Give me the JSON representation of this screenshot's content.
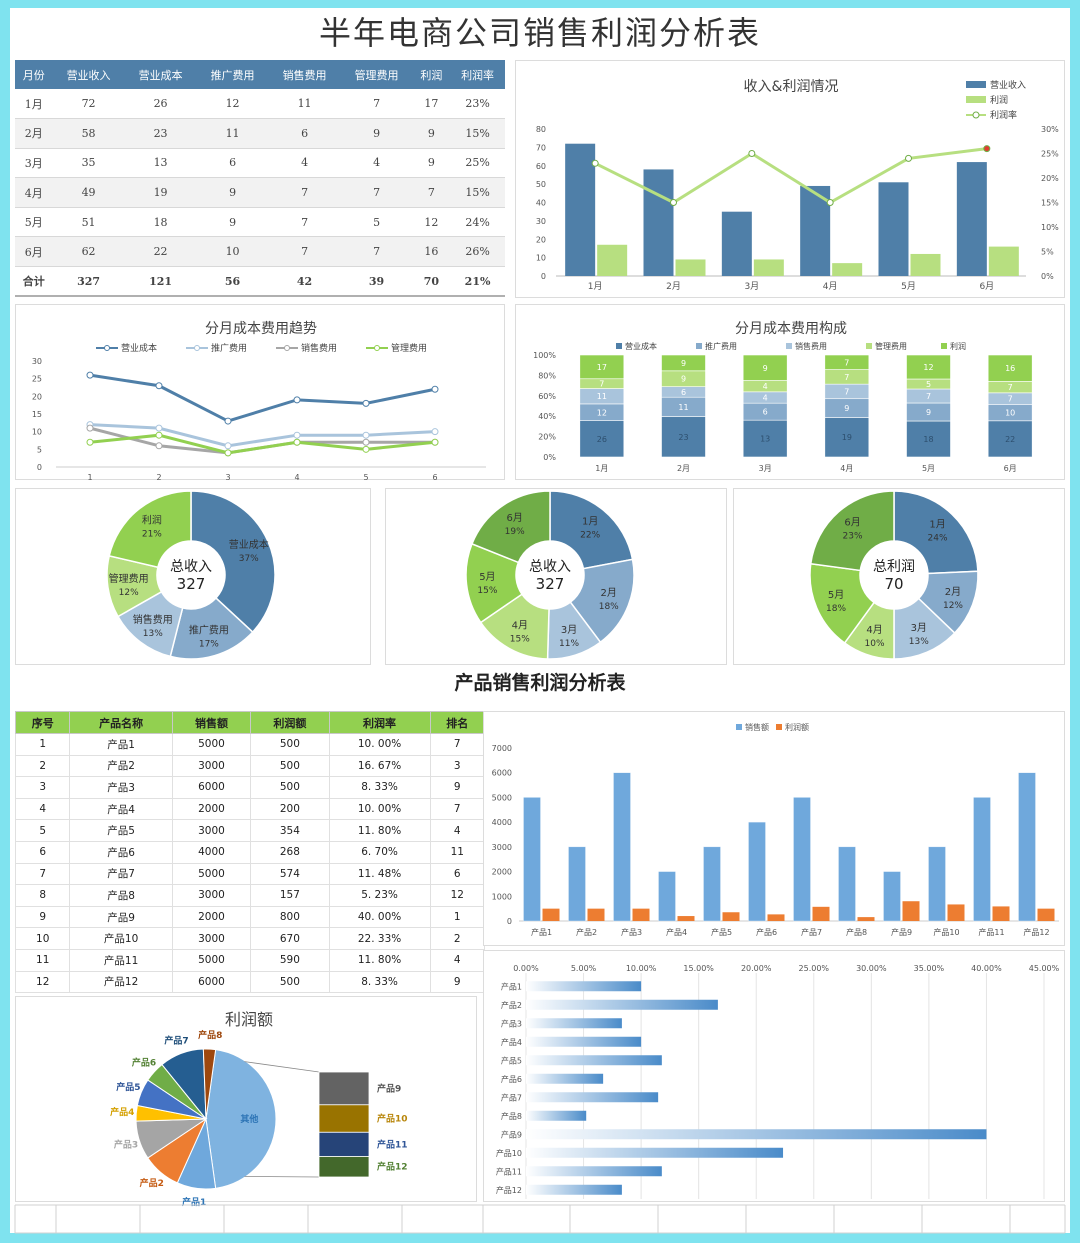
{
  "title": "半年电商公司销售利润分析表",
  "monthly_table": {
    "headers": [
      "月份",
      "营业收入",
      "营业成本",
      "推广费用",
      "销售费用",
      "管理费用",
      "利润",
      "利润率"
    ],
    "rows": [
      [
        "1月",
        "72",
        "26",
        "12",
        "11",
        "7",
        "17",
        "23%"
      ],
      [
        "2月",
        "58",
        "23",
        "11",
        "6",
        "9",
        "9",
        "15%"
      ],
      [
        "3月",
        "35",
        "13",
        "6",
        "4",
        "4",
        "9",
        "25%"
      ],
      [
        "4月",
        "49",
        "19",
        "9",
        "7",
        "7",
        "7",
        "15%"
      ],
      [
        "5月",
        "51",
        "18",
        "9",
        "7",
        "5",
        "12",
        "24%"
      ],
      [
        "6月",
        "62",
        "22",
        "10",
        "7",
        "7",
        "16",
        "26%"
      ]
    ],
    "total": [
      "合计",
      "327",
      "121",
      "56",
      "42",
      "39",
      "70",
      "21%"
    ]
  },
  "colors": {
    "blue": "#4f7fa8",
    "light_blue": "#a9c4dc",
    "gray": "#a6a6a6",
    "green": "#92d050",
    "lime": "#b7df80",
    "dark_green": "#70ad47",
    "orange": "#ed7d31",
    "bar_blue": "#6fa8dc",
    "yellow": "#ffc000"
  },
  "product_title": "产品销售利润分析表",
  "product_table": {
    "headers": [
      "序号",
      "产品名称",
      "销售额",
      "利润额",
      "利润率",
      "排名"
    ],
    "rows": [
      [
        "1",
        "产品1",
        "5000",
        "500",
        "10. 00%",
        "7"
      ],
      [
        "2",
        "产品2",
        "3000",
        "500",
        "16. 67%",
        "3"
      ],
      [
        "3",
        "产品3",
        "6000",
        "500",
        "8. 33%",
        "9"
      ],
      [
        "4",
        "产品4",
        "2000",
        "200",
        "10. 00%",
        "7"
      ],
      [
        "5",
        "产品5",
        "3000",
        "354",
        "11. 80%",
        "4"
      ],
      [
        "6",
        "产品6",
        "4000",
        "268",
        "6. 70%",
        "11"
      ],
      [
        "7",
        "产品7",
        "5000",
        "574",
        "11. 48%",
        "6"
      ],
      [
        "8",
        "产品8",
        "3000",
        "157",
        "5. 23%",
        "12"
      ],
      [
        "9",
        "产品9",
        "2000",
        "800",
        "40. 00%",
        "1"
      ],
      [
        "10",
        "产品10",
        "3000",
        "670",
        "22. 33%",
        "2"
      ],
      [
        "11",
        "产品11",
        "5000",
        "590",
        "11. 80%",
        "4"
      ],
      [
        "12",
        "产品12",
        "6000",
        "500",
        "8. 33%",
        "9"
      ]
    ]
  },
  "chart_data": [
    {
      "id": "income_profit",
      "type": "bar",
      "title": "收入&利润情况",
      "categories": [
        "1月",
        "2月",
        "3月",
        "4月",
        "5月",
        "6月"
      ],
      "series": [
        {
          "name": "营业收入",
          "values": [
            72,
            58,
            35,
            49,
            51,
            62
          ],
          "axis": "left"
        },
        {
          "name": "利润",
          "values": [
            17,
            9,
            9,
            7,
            12,
            16
          ],
          "axis": "left"
        },
        {
          "name": "利润率",
          "values": [
            23,
            15,
            25,
            15,
            24,
            26
          ],
          "axis": "right",
          "kind": "line"
        }
      ],
      "left_ticks": [
        "0",
        "10",
        "20",
        "30",
        "40",
        "50",
        "60",
        "70",
        "80"
      ],
      "right_ticks": [
        "0%",
        "5%",
        "10%",
        "15%",
        "20%",
        "25%",
        "30%"
      ],
      "ylim": [
        0,
        80
      ],
      "y2lim": [
        0,
        30
      ]
    },
    {
      "id": "cost_trend",
      "type": "line",
      "title": "分月成本费用趋势",
      "x": [
        "1",
        "2",
        "3",
        "4",
        "5",
        "6"
      ],
      "series": [
        {
          "name": "营业成本",
          "values": [
            26,
            23,
            13,
            19,
            18,
            22
          ]
        },
        {
          "name": "推广费用",
          "values": [
            12,
            11,
            6,
            9,
            9,
            10
          ]
        },
        {
          "name": "销售费用",
          "values": [
            11,
            6,
            4,
            7,
            7,
            7
          ]
        },
        {
          "name": "管理费用",
          "values": [
            7,
            9,
            4,
            7,
            5,
            7
          ]
        }
      ],
      "y_ticks": [
        "0",
        "5",
        "10",
        "15",
        "20",
        "25",
        "30"
      ],
      "ylim": [
        0,
        30
      ]
    },
    {
      "id": "cost_composition",
      "type": "bar",
      "stacked": "percent",
      "title": "分月成本费用构成",
      "categories": [
        "1月",
        "2月",
        "3月",
        "4月",
        "5月",
        "6月"
      ],
      "series": [
        {
          "name": "营业成本",
          "values": [
            26,
            23,
            13,
            19,
            18,
            22
          ]
        },
        {
          "name": "推广费用",
          "values": [
            12,
            11,
            6,
            9,
            9,
            10
          ]
        },
        {
          "name": "销售费用",
          "values": [
            11,
            6,
            4,
            7,
            7,
            7
          ]
        },
        {
          "name": "管理费用",
          "values": [
            7,
            9,
            4,
            7,
            5,
            7
          ]
        },
        {
          "name": "利润",
          "values": [
            17,
            9,
            9,
            7,
            12,
            16
          ]
        }
      ],
      "y_ticks": [
        "0%",
        "20%",
        "40%",
        "60%",
        "80%",
        "100%"
      ]
    },
    {
      "id": "donut_breakdown",
      "type": "pie",
      "center_label": "总收入",
      "center_value": "327",
      "slices": [
        {
          "name": "营业成本",
          "value": 121,
          "pct": "37%"
        },
        {
          "name": "推广费用",
          "value": 56,
          "pct": "17%"
        },
        {
          "name": "销售费用",
          "value": 42,
          "pct": "13%"
        },
        {
          "name": "管理费用",
          "value": 39,
          "pct": "12%"
        },
        {
          "name": "利润",
          "value": 70,
          "pct": "21%"
        }
      ]
    },
    {
      "id": "donut_income",
      "type": "pie",
      "center_label": "总收入",
      "center_value": "327",
      "slices": [
        {
          "name": "1月",
          "value": 72,
          "pct": "22%"
        },
        {
          "name": "2月",
          "value": 58,
          "pct": "18%"
        },
        {
          "name": "3月",
          "value": 35,
          "pct": "11%"
        },
        {
          "name": "4月",
          "value": 49,
          "pct": "15%"
        },
        {
          "name": "5月",
          "value": 51,
          "pct": "15%"
        },
        {
          "name": "6月",
          "value": 62,
          "pct": "19%"
        }
      ]
    },
    {
      "id": "donut_profit",
      "type": "pie",
      "center_label": "总利润",
      "center_value": "70",
      "slices": [
        {
          "name": "1月",
          "value": 17,
          "pct": "24%"
        },
        {
          "name": "2月",
          "value": 9,
          "pct": "12%"
        },
        {
          "name": "3月",
          "value": 9,
          "pct": "13%"
        },
        {
          "name": "4月",
          "value": 7,
          "pct": "10%"
        },
        {
          "name": "5月",
          "value": 12,
          "pct": "18%"
        },
        {
          "name": "6月",
          "value": 16,
          "pct": "23%"
        }
      ]
    },
    {
      "id": "product_sales",
      "type": "bar",
      "title": "",
      "categories": [
        "产品1",
        "产品2",
        "产品3",
        "产品4",
        "产品5",
        "产品6",
        "产品7",
        "产品8",
        "产品9",
        "产品10",
        "产品11",
        "产品12"
      ],
      "series": [
        {
          "name": "销售额",
          "values": [
            5000,
            3000,
            6000,
            2000,
            3000,
            4000,
            5000,
            3000,
            2000,
            3000,
            5000,
            6000
          ]
        },
        {
          "name": "利润额",
          "values": [
            500,
            500,
            500,
            200,
            354,
            268,
            574,
            157,
            800,
            670,
            590,
            500
          ]
        }
      ],
      "y_ticks": [
        "0",
        "1000",
        "2000",
        "3000",
        "4000",
        "5000",
        "6000",
        "7000"
      ],
      "ylim": [
        0,
        7000
      ]
    },
    {
      "id": "profit_rate",
      "type": "bar",
      "orientation": "horizontal",
      "categories": [
        "产品1",
        "产品2",
        "产品3",
        "产品4",
        "产品5",
        "产品6",
        "产品7",
        "产品8",
        "产品9",
        "产品10",
        "产品11",
        "产品12"
      ],
      "values": [
        10.0,
        16.67,
        8.33,
        10.0,
        11.8,
        6.7,
        11.48,
        5.23,
        40.0,
        22.33,
        11.8,
        8.33
      ],
      "x_ticks": [
        "0.00%",
        "5.00%",
        "10.00%",
        "15.00%",
        "20.00%",
        "25.00%",
        "30.00%",
        "35.00%",
        "40.00%",
        "45.00%"
      ],
      "xlim": [
        0,
        45
      ]
    },
    {
      "id": "profit_pie",
      "type": "pie",
      "title": "利润额",
      "other_label": "其他",
      "slices": [
        {
          "name": "产品1",
          "value": 500
        },
        {
          "name": "产品2",
          "value": 500
        },
        {
          "name": "产品3",
          "value": 500
        },
        {
          "name": "产品4",
          "value": 200
        },
        {
          "name": "产品5",
          "value": 354
        },
        {
          "name": "产品6",
          "value": 268
        },
        {
          "name": "产品7",
          "value": 574
        },
        {
          "name": "产品8",
          "value": 157
        }
      ],
      "other_slices": [
        {
          "name": "产品9",
          "value": 800
        },
        {
          "name": "产品10",
          "value": 670
        },
        {
          "name": "产品11",
          "value": 590
        },
        {
          "name": "产品12",
          "value": 500
        }
      ]
    }
  ]
}
